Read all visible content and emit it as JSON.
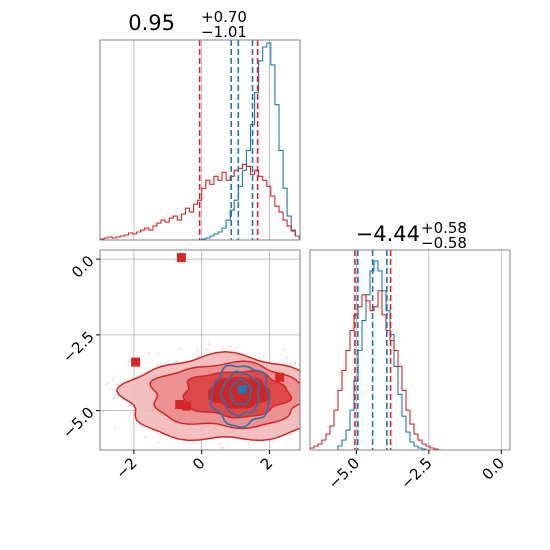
{
  "chart_data": {
    "type": "corner",
    "colors": {
      "blue": "#1f77b4",
      "red": "#d62728",
      "grid": "#b0b0b0",
      "axes": "#808080"
    },
    "grid": true,
    "panels": {
      "top_hist": {
        "title": {
          "main": "0.95",
          "sup": "+0.70",
          "sub": "−1.01"
        },
        "xlim": [
          -3,
          2.9
        ],
        "bin_edges_start": -3.0,
        "bin_width": 0.12,
        "series": [
          {
            "color": "blue",
            "counts": [
              0,
              0,
              0,
              0,
              0,
              0,
              0,
              0,
              0,
              0,
              0,
              0,
              0,
              0,
              0,
              0,
              0,
              0,
              0,
              0,
              0,
              0,
              0,
              0,
              0,
              0.005,
              0.01,
              0.02,
              0.03,
              0.04,
              0.06,
              0.1,
              0.15,
              0.2,
              0.27,
              0.35,
              0.45,
              0.58,
              0.74,
              0.9,
              0.97,
              0.99,
              0.88,
              0.68,
              0.45,
              0.26,
              0.12,
              0.05,
              0.02,
              0
            ]
          },
          {
            "color": "red",
            "counts": [
              0.005,
              0.01,
              0.015,
              0.01,
              0.015,
              0.02,
              0.025,
              0.035,
              0.03,
              0.04,
              0.05,
              0.06,
              0.05,
              0.07,
              0.085,
              0.1,
              0.09,
              0.11,
              0.12,
              0.1,
              0.13,
              0.16,
              0.14,
              0.18,
              0.2,
              0.26,
              0.3,
              0.28,
              0.32,
              0.3,
              0.34,
              0.3,
              0.32,
              0.35,
              0.36,
              0.38,
              0.37,
              0.33,
              0.35,
              0.32,
              0.3,
              0.27,
              0.22,
              0.17,
              0.14,
              0.1,
              0.07,
              0.045,
              0.02,
              0.01
            ]
          }
        ],
        "vlines": [
          {
            "x": -0.06,
            "color": "red"
          },
          {
            "x": 1.65,
            "color": "red"
          },
          {
            "x": 0.87,
            "color": "blue"
          },
          {
            "x": 1.5,
            "color": "blue"
          },
          {
            "x": 1.08,
            "color": "blue"
          }
        ]
      },
      "right_hist": {
        "title": {
          "main": "−4.44",
          "sup": "+0.58",
          "sub": "−0.58"
        },
        "xlim": [
          -6.6,
          0.3
        ],
        "xticks": [
          "-5.0",
          "-2.5",
          "0.0"
        ],
        "xtick_values": [
          -5.0,
          -2.5,
          0.0
        ],
        "bin_edges_start": -6.6,
        "bin_width": 0.138,
        "series": [
          {
            "color": "blue",
            "counts": [
              0,
              0,
              0,
              0,
              0,
              0,
              0,
              0.02,
              0.05,
              0.1,
              0.2,
              0.35,
              0.5,
              0.65,
              0.78,
              0.9,
              0.95,
              0.9,
              0.8,
              0.7,
              0.58,
              0.42,
              0.28,
              0.17,
              0.09,
              0.04,
              0.02,
              0.01,
              0.005,
              0,
              0,
              0,
              0,
              0,
              0,
              0,
              0,
              0,
              0,
              0,
              0,
              0,
              0,
              0,
              0,
              0,
              0,
              0,
              0,
              0
            ]
          },
          {
            "color": "red",
            "counts": [
              0.01,
              0.02,
              0.03,
              0.05,
              0.08,
              0.12,
              0.2,
              0.3,
              0.4,
              0.5,
              0.6,
              0.68,
              0.72,
              0.78,
              0.75,
              0.7,
              0.72,
              0.8,
              0.68,
              0.6,
              0.55,
              0.5,
              0.42,
              0.3,
              0.2,
              0.13,
              0.08,
              0.05,
              0.03,
              0.02,
              0.01,
              0.005,
              0,
              0,
              0,
              0,
              0,
              0,
              0,
              0,
              0,
              0,
              0,
              0,
              0,
              0,
              0,
              0,
              0,
              0
            ]
          }
        ],
        "vlines": [
          {
            "x": -5.05,
            "color": "red"
          },
          {
            "x": -3.82,
            "color": "red"
          },
          {
            "x": -4.95,
            "color": "blue"
          },
          {
            "x": -3.95,
            "color": "blue"
          },
          {
            "x": -4.44,
            "color": "blue"
          }
        ]
      },
      "scatter": {
        "xlim": [
          -3,
          2.9
        ],
        "ylim": [
          -6.3,
          0.3
        ],
        "xticks": [
          "-2",
          "0",
          "2"
        ],
        "xtick_values": [
          -2,
          0,
          2
        ],
        "yticks": [
          "0.0",
          "-2.5",
          "-5.0"
        ],
        "ytick_values": [
          0.0,
          -2.5,
          -5.0
        ],
        "contours": [
          {
            "color": "red",
            "cx": 0.7,
            "cy": -4.6,
            "rx": 3.0,
            "ry": 1.4,
            "fill": "#f3b8b8"
          },
          {
            "color": "red",
            "cx": 0.8,
            "cy": -4.5,
            "rx": 2.3,
            "ry": 1.05,
            "fill": "#eb8c8c"
          },
          {
            "color": "red",
            "cx": 1.0,
            "cy": -4.45,
            "rx": 1.55,
            "ry": 0.75,
            "fill": "#dc4040"
          },
          {
            "color": "red",
            "cx": 1.1,
            "cy": -4.4,
            "rx": 0.9,
            "ry": 0.5,
            "fill": "#cf2222"
          },
          {
            "color": "blue",
            "cx": 1.15,
            "cy": -4.5,
            "rx": 0.85,
            "ry": 1.0,
            "fill": "none"
          },
          {
            "color": "blue",
            "cx": 1.15,
            "cy": -4.45,
            "rx": 0.55,
            "ry": 0.7,
            "fill": "none"
          },
          {
            "color": "blue",
            "cx": 1.15,
            "cy": -4.4,
            "rx": 0.3,
            "ry": 0.4,
            "fill": "none"
          }
        ],
        "markers": [
          {
            "x": -0.6,
            "y": 0.05,
            "color": "red"
          },
          {
            "x": -1.95,
            "y": -3.4,
            "color": "red"
          },
          {
            "x": -0.65,
            "y": -4.8,
            "color": "red"
          },
          {
            "x": -0.45,
            "y": -4.85,
            "color": "red"
          },
          {
            "x": 2.3,
            "y": -3.9,
            "color": "red"
          },
          {
            "x": 1.2,
            "y": -4.3,
            "color": "blue"
          }
        ]
      }
    }
  }
}
